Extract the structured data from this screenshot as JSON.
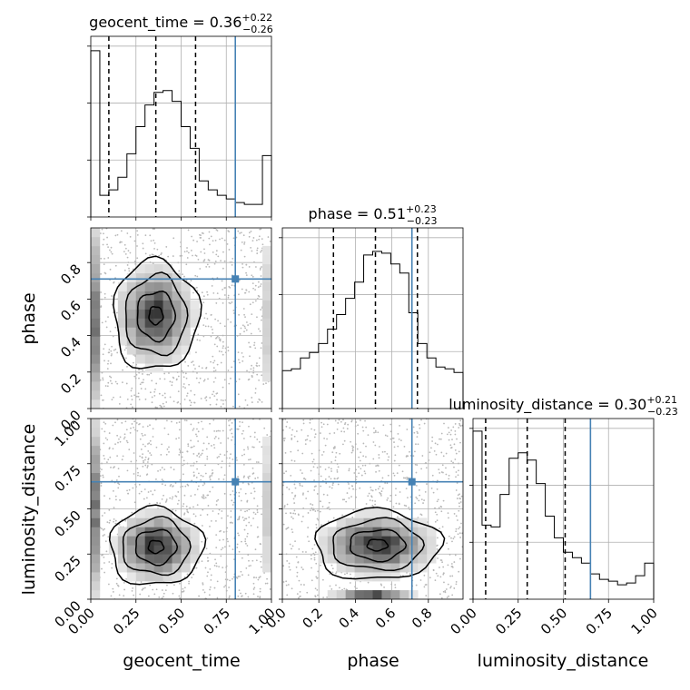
{
  "chart_data": {
    "type": "corner",
    "parameters": [
      "geocent_time",
      "phase",
      "luminosity_distance"
    ],
    "axis_labels": [
      "geocent_time",
      "phase",
      "luminosity_distance"
    ],
    "ranges": [
      [
        0.0,
        1.0
      ],
      [
        0.0,
        0.99
      ],
      [
        0.0,
        1.0
      ]
    ],
    "ticks": [
      {
        "values": [
          0.0,
          0.25,
          0.5,
          0.75,
          1.0
        ],
        "labels": [
          "0.00",
          "0.25",
          "0.50",
          "0.75",
          "1.00"
        ]
      },
      {
        "values": [
          0.2,
          0.4,
          0.6,
          0.8
        ],
        "labels": [
          "0.2",
          "0.4",
          "0.6",
          "0.8"
        ]
      },
      {
        "values": [
          0.0,
          0.25,
          0.5,
          0.75,
          1.0
        ],
        "labels": [
          "0.00",
          "0.25",
          "0.50",
          "0.75",
          "1.00"
        ]
      }
    ],
    "phase_x_ticks": {
      "values": [
        0.0,
        0.2,
        0.4,
        0.6,
        0.8
      ],
      "labels": [
        "0.0",
        "0.2",
        "0.4",
        "0.6",
        "0.8"
      ]
    },
    "phase_y_ticks": {
      "values": [
        0.0,
        0.2,
        0.4,
        0.6,
        0.8
      ],
      "labels": [
        "0.0",
        "0.2",
        "0.4",
        "0.6",
        "0.8"
      ]
    },
    "titles": [
      {
        "name": "geocent_time",
        "median": "0.36",
        "plus": "+0.22",
        "minus": "−0.26"
      },
      {
        "name": "phase",
        "median": "0.51",
        "plus": "+0.23",
        "minus": "−0.23"
      },
      {
        "name": "luminosity_distance",
        "median": "0.30",
        "plus": "+0.21",
        "minus": "−0.23"
      }
    ],
    "truths": [
      0.8,
      0.71,
      0.65
    ],
    "quantiles": [
      [
        0.1,
        0.36,
        0.58
      ],
      [
        0.28,
        0.51,
        0.74
      ],
      [
        0.07,
        0.3,
        0.51
      ]
    ],
    "histograms": [
      [
        0.92,
        0.12,
        0.15,
        0.22,
        0.35,
        0.5,
        0.62,
        0.69,
        0.7,
        0.64,
        0.5,
        0.38,
        0.2,
        0.15,
        0.12,
        0.1,
        0.08,
        0.07,
        0.07,
        0.34
      ],
      [
        0.21,
        0.22,
        0.28,
        0.31,
        0.36,
        0.44,
        0.52,
        0.61,
        0.7,
        0.85,
        0.87,
        0.86,
        0.8,
        0.75,
        0.53,
        0.36,
        0.28,
        0.23,
        0.22,
        0.2
      ],
      [
        0.93,
        0.41,
        0.4,
        0.58,
        0.78,
        0.81,
        0.77,
        0.64,
        0.46,
        0.34,
        0.26,
        0.23,
        0.2,
        0.14,
        0.11,
        0.1,
        0.08,
        0.09,
        0.13,
        0.2
      ]
    ],
    "densities": [
      {
        "x": "geocent_time",
        "y": "phase",
        "x_center": 0.36,
        "y_center": 0.51,
        "x_sigma": 0.11,
        "y_sigma": 0.14,
        "edge_band": true
      },
      {
        "x": "geocent_time",
        "y": "luminosity_distance",
        "x_center": 0.36,
        "y_center": 0.29,
        "x_sigma": 0.12,
        "y_sigma": 0.1,
        "edge_band": true
      },
      {
        "x": "phase",
        "y": "luminosity_distance",
        "x_center": 0.52,
        "y_center": 0.3,
        "x_sigma": 0.16,
        "y_sigma": 0.09,
        "edge_band": false
      }
    ],
    "grid": true
  }
}
